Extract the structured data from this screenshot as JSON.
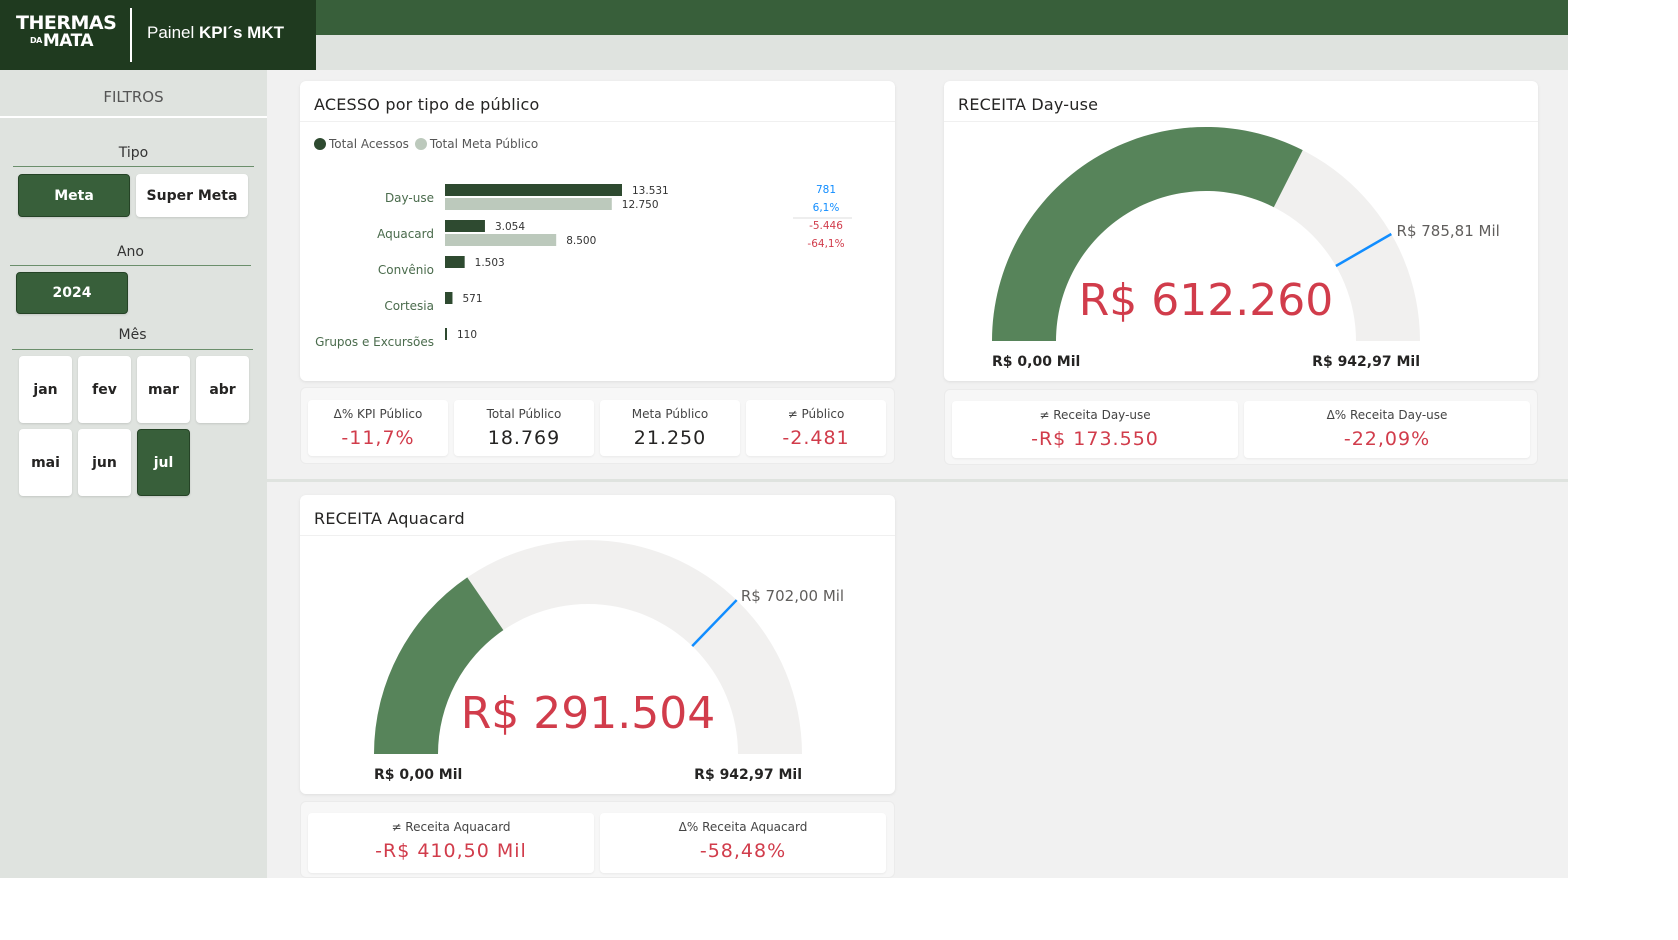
{
  "header": {
    "logo_line1": "THERMAS",
    "logo_small": "DA",
    "logo_line2": "MATA",
    "title_prefix": "Painel",
    "title_bold": "KPI´s MKT"
  },
  "sidebar": {
    "title": "FILTROS",
    "tipo": {
      "label": "Tipo",
      "options": [
        "Meta",
        "Super Meta"
      ],
      "selected": "Meta"
    },
    "ano": {
      "label": "Ano",
      "options": [
        "2024"
      ],
      "selected": "2024"
    },
    "mes": {
      "label": "Mês",
      "options": [
        "jan",
        "fev",
        "mar",
        "abr",
        "mai",
        "jun",
        "jul"
      ],
      "selected": "jul"
    }
  },
  "acesso": {
    "title": "ACESSO por tipo de público",
    "legend": [
      "Total Acessos",
      "Total Meta Público"
    ]
  },
  "kpis_publico": [
    {
      "label": "Δ% KPI Público",
      "value": "-11,7%",
      "negative": true
    },
    {
      "label": "Total Público",
      "value": "18.769",
      "negative": false
    },
    {
      "label": "Meta Público",
      "value": "21.250",
      "negative": false
    },
    {
      "label": "≠ Público",
      "value": "-2.481",
      "negative": true
    }
  ],
  "dayuse": {
    "title": "RECEITA Day-use",
    "value": "R$ 612.260",
    "min_label": "R$ 0,00 Mil",
    "max_label": "R$ 942,97 Mil",
    "target_label": "R$ 785,81 Mil",
    "kpis": [
      {
        "label": "≠ Receita Day-use",
        "value": "-R$ 173.550"
      },
      {
        "label": "Δ% Receita Day-use",
        "value": "-22,09%"
      }
    ]
  },
  "aquacard": {
    "title": "RECEITA Aquacard",
    "value": "R$ 291.504",
    "min_label": "R$ 0,00 Mil",
    "max_label": "R$ 942,97 Mil",
    "target_label": "R$ 702,00 Mil",
    "kpis": [
      {
        "label": "≠ Receita Aquacard",
        "value": "-R$ 410,50 Mil"
      },
      {
        "label": "Δ% Receita Aquacard",
        "value": "-58,48%"
      }
    ]
  },
  "colors": {
    "dark_green": "#385f3a",
    "bar_actual": "#2e4a30",
    "bar_meta": "#bcc9bc",
    "gauge_fill": "#57845a",
    "gauge_bg": "#f1f0ef",
    "target_line": "#118dff",
    "negative": "#d13c4b"
  },
  "chart_data": [
    {
      "type": "bar",
      "orientation": "horizontal",
      "title": "ACESSO por tipo de público",
      "categories": [
        "Day-use",
        "Aquacard",
        "Convênio",
        "Cortesia",
        "Grupos e Excursões"
      ],
      "series": [
        {
          "name": "Total Acessos",
          "values": [
            13531,
            3054,
            1503,
            571,
            110
          ]
        },
        {
          "name": "Total Meta Público",
          "values": [
            12750,
            8500,
            null,
            null,
            null
          ]
        }
      ],
      "value_labels": {
        "Total Acessos": [
          "13.531",
          "3.054",
          "1.503",
          "571",
          "110"
        ],
        "Total Meta Público": [
          "12.750",
          "8.500",
          "",
          "",
          ""
        ]
      },
      "variance_labels": [
        {
          "category": "Day-use",
          "diff": "781",
          "pct": "6,1%",
          "positive": true
        },
        {
          "category": "Aquacard",
          "diff": "-5.446",
          "pct": "-64,1%",
          "positive": false
        }
      ],
      "legend": "top-left",
      "xlim": [
        0,
        30000
      ]
    },
    {
      "type": "gauge",
      "title": "RECEITA Day-use",
      "value": 612260,
      "min": 0,
      "max": 942970,
      "target": 785810
    },
    {
      "type": "gauge",
      "title": "RECEITA Aquacard",
      "value": 291504,
      "min": 0,
      "max": 942970,
      "target": 702000
    }
  ]
}
